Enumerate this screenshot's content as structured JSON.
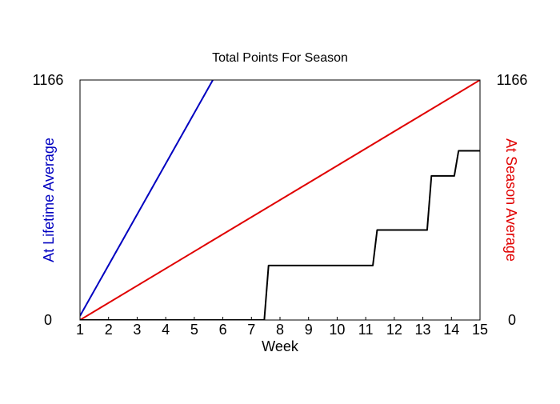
{
  "chart_data": {
    "type": "line",
    "title": "Total Points For Season",
    "xlabel": "Week",
    "ylabel_left": "At Lifetime Average",
    "ylabel_right": "At Season Average",
    "xlim": [
      1,
      15
    ],
    "ylim": [
      0,
      1166
    ],
    "x_ticks": [
      1,
      2,
      3,
      4,
      5,
      6,
      7,
      8,
      9,
      10,
      11,
      12,
      13,
      14,
      15
    ],
    "y_tick_labels_left": [
      "0",
      "1166"
    ],
    "y_tick_labels_right": [
      "0",
      "1166"
    ],
    "grid": false,
    "colors": {
      "lifetime": "#0000c0",
      "season": "#e00000",
      "actual": "#000000"
    },
    "series": [
      {
        "key": "lifetime",
        "color": "#0000c0",
        "points": [
          [
            1.0,
            20
          ],
          [
            5.65,
            1166
          ]
        ]
      },
      {
        "key": "season",
        "color": "#e00000",
        "points": [
          [
            1.0,
            0
          ],
          [
            15.0,
            1166
          ]
        ]
      },
      {
        "key": "actual",
        "color": "#000000",
        "points": [
          [
            1.0,
            0
          ],
          [
            7.45,
            0
          ],
          [
            7.6,
            265
          ],
          [
            11.25,
            265
          ],
          [
            11.4,
            437
          ],
          [
            13.15,
            437
          ],
          [
            13.3,
            700
          ],
          [
            14.1,
            700
          ],
          [
            14.25,
            822
          ],
          [
            15.0,
            822
          ]
        ]
      }
    ]
  }
}
